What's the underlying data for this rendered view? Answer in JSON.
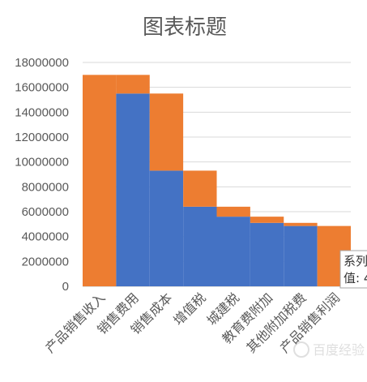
{
  "chart_data": {
    "type": "bar",
    "stacked": true,
    "title": "图表标题",
    "categories": [
      "产品销售收入",
      "销售费用",
      "销售成本",
      "增值税",
      "城建税",
      "教育费附加",
      "其他附加税费",
      "产品销售利润"
    ],
    "series": [
      {
        "name": "",
        "color": "#4472C4",
        "values": [
          0,
          15500000,
          9300000,
          6400000,
          5600000,
          5100000,
          4850000,
          0
        ]
      },
      {
        "name": "",
        "color": "#ED7D31",
        "values": [
          17000000,
          1500000,
          6200000,
          2900000,
          800000,
          500000,
          250000,
          4850000
        ]
      }
    ],
    "ylim": [
      0,
      18000000
    ],
    "yticks": [
      0,
      2000000,
      4000000,
      6000000,
      8000000,
      10000000,
      12000000,
      14000000,
      16000000,
      18000000
    ],
    "grid": true,
    "xlabel": "",
    "ylabel": ""
  },
  "tooltip": {
    "line1": "系列",
    "line2": "值: 4"
  },
  "watermark": "百度经验"
}
